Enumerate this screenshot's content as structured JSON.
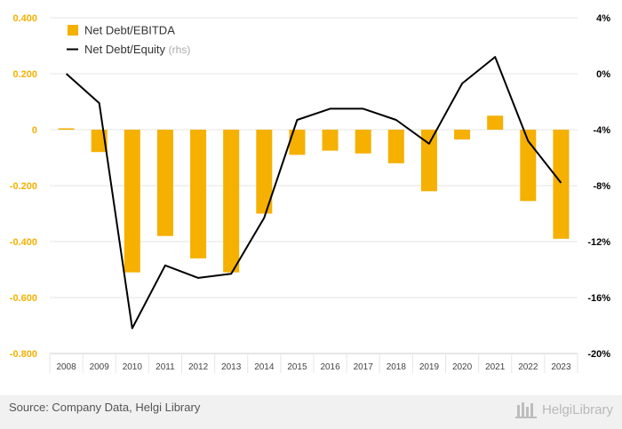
{
  "colors": {
    "bars": "#f5b000",
    "line": "#000000",
    "left_axis_text": "#f5b000",
    "right_axis_text": "#000000",
    "grid": "#e6e6e6"
  },
  "chart_data": {
    "type": "bar+line",
    "categories": [
      "2008",
      "2009",
      "2010",
      "2011",
      "2012",
      "2013",
      "2014",
      "2015",
      "2016",
      "2017",
      "2018",
      "2019",
      "2020",
      "2021",
      "2022",
      "2023"
    ],
    "series": [
      {
        "name": "Net Debt/EBITDA",
        "type": "bar",
        "axis": "left",
        "values": [
          0.005,
          -0.08,
          -0.51,
          -0.38,
          -0.46,
          -0.51,
          -0.3,
          -0.09,
          -0.075,
          -0.085,
          -0.12,
          -0.22,
          -0.035,
          0.05,
          -0.255,
          -0.39
        ]
      },
      {
        "name": "Net Debt/Equity",
        "name_suffix": "(rhs)",
        "type": "line",
        "axis": "right",
        "values": [
          0.0,
          -2.1,
          -18.2,
          -13.7,
          -14.6,
          -14.3,
          -10.3,
          -3.3,
          -2.5,
          -2.5,
          -3.3,
          -5.0,
          -0.7,
          1.2,
          -4.8,
          -7.8
        ]
      }
    ],
    "left_axis": {
      "min": -0.8,
      "max": 0.4,
      "ticks": [
        "0.400",
        "0.200",
        "0",
        "-0.200",
        "-0.400",
        "-0.600",
        "-0.800"
      ]
    },
    "right_axis": {
      "min": -20,
      "max": 4,
      "ticks": [
        "4%",
        "0%",
        "-4%",
        "-8%",
        "-12%",
        "-16%",
        "-20%"
      ]
    },
    "grid": true,
    "legend_placement": "top-left"
  },
  "footer": {
    "source": "Source: Company Data, Helgi Library",
    "logo_text": "HelgiLibrary"
  }
}
